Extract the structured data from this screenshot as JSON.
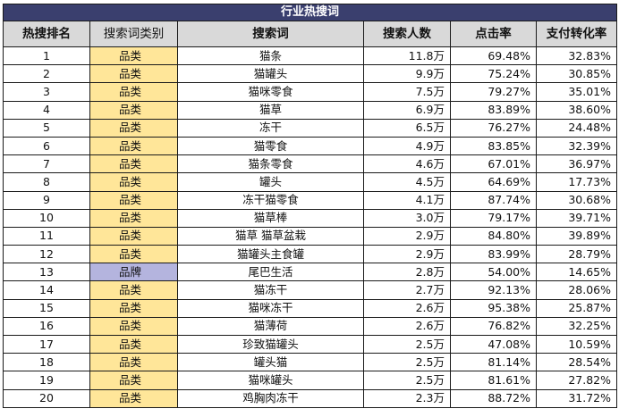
{
  "title": "行业热搜词",
  "headers": [
    "热搜排名",
    "搜索词类别",
    "搜索词",
    "搜索人数",
    "点击率",
    "支付转化率"
  ],
  "colors": {
    "title_bg": "#3a3f6e",
    "header_bg": "#d9d9d9",
    "category_bg": "#ffe699",
    "brand_bg": "#b4b4de"
  },
  "rows": [
    {
      "rank": "1",
      "category": "品类",
      "term": "猫条",
      "searchers": "11.8万",
      "ctr": "69.48%",
      "cvr": "32.83%"
    },
    {
      "rank": "2",
      "category": "品类",
      "term": "猫罐头",
      "searchers": "9.9万",
      "ctr": "75.24%",
      "cvr": "30.85%"
    },
    {
      "rank": "3",
      "category": "品类",
      "term": "猫咪零食",
      "searchers": "7.5万",
      "ctr": "79.27%",
      "cvr": "35.01%"
    },
    {
      "rank": "4",
      "category": "品类",
      "term": "猫草",
      "searchers": "6.9万",
      "ctr": "83.89%",
      "cvr": "38.60%"
    },
    {
      "rank": "5",
      "category": "品类",
      "term": "冻干",
      "searchers": "6.5万",
      "ctr": "76.27%",
      "cvr": "24.48%"
    },
    {
      "rank": "6",
      "category": "品类",
      "term": "猫零食",
      "searchers": "4.9万",
      "ctr": "83.85%",
      "cvr": "32.39%"
    },
    {
      "rank": "7",
      "category": "品类",
      "term": "猫条零食",
      "searchers": "4.6万",
      "ctr": "67.01%",
      "cvr": "36.97%"
    },
    {
      "rank": "8",
      "category": "品类",
      "term": "罐头",
      "searchers": "4.5万",
      "ctr": "64.69%",
      "cvr": "17.73%"
    },
    {
      "rank": "9",
      "category": "品类",
      "term": "冻干猫零食",
      "searchers": "4.1万",
      "ctr": "87.74%",
      "cvr": "30.68%"
    },
    {
      "rank": "10",
      "category": "品类",
      "term": "猫草棒",
      "searchers": "3.0万",
      "ctr": "79.17%",
      "cvr": "39.71%"
    },
    {
      "rank": "11",
      "category": "品类",
      "term": "猫草 猫草盆栽",
      "searchers": "2.9万",
      "ctr": "84.80%",
      "cvr": "39.89%"
    },
    {
      "rank": "12",
      "category": "品类",
      "term": "猫罐头主食罐",
      "searchers": "2.9万",
      "ctr": "83.99%",
      "cvr": "28.79%"
    },
    {
      "rank": "13",
      "category": "品牌",
      "term": "尾巴生活",
      "searchers": "2.8万",
      "ctr": "54.00%",
      "cvr": "14.65%"
    },
    {
      "rank": "14",
      "category": "品类",
      "term": "猫冻干",
      "searchers": "2.7万",
      "ctr": "92.13%",
      "cvr": "28.06%"
    },
    {
      "rank": "15",
      "category": "品类",
      "term": "猫咪冻干",
      "searchers": "2.6万",
      "ctr": "95.38%",
      "cvr": "25.87%"
    },
    {
      "rank": "16",
      "category": "品类",
      "term": "猫薄荷",
      "searchers": "2.6万",
      "ctr": "76.82%",
      "cvr": "32.25%"
    },
    {
      "rank": "17",
      "category": "品类",
      "term": "珍致猫罐头",
      "searchers": "2.5万",
      "ctr": "47.08%",
      "cvr": "10.59%"
    },
    {
      "rank": "18",
      "category": "品类",
      "term": "罐头猫",
      "searchers": "2.5万",
      "ctr": "81.14%",
      "cvr": "28.54%"
    },
    {
      "rank": "19",
      "category": "品类",
      "term": "猫咪罐头",
      "searchers": "2.5万",
      "ctr": "81.61%",
      "cvr": "27.82%"
    },
    {
      "rank": "20",
      "category": "品类",
      "term": "鸡胸肉冻干",
      "searchers": "2.3万",
      "ctr": "88.72%",
      "cvr": "31.72%"
    }
  ]
}
